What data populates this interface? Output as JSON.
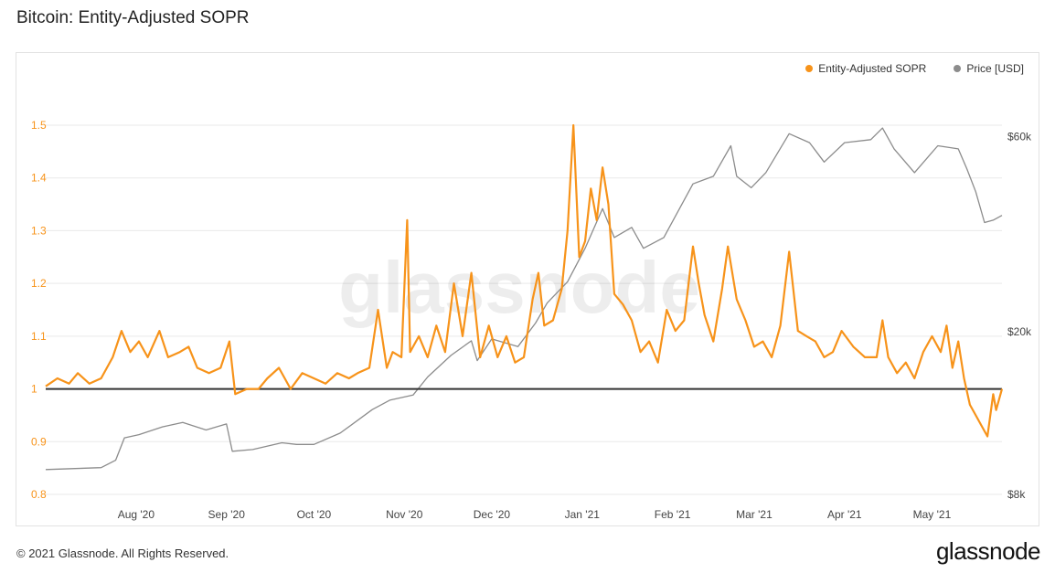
{
  "header": {
    "title": "Bitcoin: Entity-Adjusted SOPR"
  },
  "footer": {
    "copyright": "© 2021 Glassnode. All Rights Reserved.",
    "logo": "glassnode"
  },
  "watermark": "glassnode",
  "colors": {
    "sopr": "#f7931a",
    "price": "#8c8c8c",
    "baseline": "#333333",
    "grid": "#e9e9e9",
    "left_axis_text": "#f7931a",
    "right_axis_text": "#444444"
  },
  "chart_data": {
    "type": "line",
    "title": "Bitcoin: Entity-Adjusted SOPR",
    "legend": {
      "placement": "top-right",
      "entries": [
        "Entity-Adjusted SOPR",
        "Price [USD]"
      ]
    },
    "x_range": [
      "2020-07-01",
      "2021-05-25"
    ],
    "x_ticks": [
      {
        "label": "Aug '20",
        "date": "2020-08-01"
      },
      {
        "label": "Sep '20",
        "date": "2020-09-01"
      },
      {
        "label": "Oct '20",
        "date": "2020-10-01"
      },
      {
        "label": "Nov '20",
        "date": "2020-11-01"
      },
      {
        "label": "Dec '20",
        "date": "2020-12-01"
      },
      {
        "label": "Jan '21",
        "date": "2021-01-01"
      },
      {
        "label": "Feb '21",
        "date": "2021-02-01"
      },
      {
        "label": "Mar '21",
        "date": "2021-03-01"
      },
      {
        "label": "Apr '21",
        "date": "2021-04-01"
      },
      {
        "label": "May '21",
        "date": "2021-05-01"
      }
    ],
    "left_axis": {
      "ylim": [
        0.8,
        1.5
      ],
      "ticks": [
        "0.8",
        "0.9",
        "1",
        "1.1",
        "1.2",
        "1.3",
        "1.4",
        "1.5"
      ],
      "tick_values": [
        0.8,
        0.9,
        1.0,
        1.1,
        1.2,
        1.3,
        1.4,
        1.5
      ]
    },
    "right_axis": {
      "scale": "log",
      "ylim": [
        8000,
        64000
      ],
      "ticks": [
        {
          "label": "$8k",
          "value": 8000
        },
        {
          "label": "$20k",
          "value": 20000
        },
        {
          "label": "$60k",
          "value": 60000
        }
      ]
    },
    "reference_line": {
      "axis": "left",
      "value": 1.0
    },
    "grid": true,
    "series": [
      {
        "name": "Entity-Adjusted SOPR",
        "axis": "left",
        "points": [
          [
            "2020-07-01",
            1.005
          ],
          [
            "2020-07-05",
            1.02
          ],
          [
            "2020-07-09",
            1.01
          ],
          [
            "2020-07-12",
            1.03
          ],
          [
            "2020-07-16",
            1.01
          ],
          [
            "2020-07-20",
            1.02
          ],
          [
            "2020-07-24",
            1.06
          ],
          [
            "2020-07-27",
            1.11
          ],
          [
            "2020-07-30",
            1.07
          ],
          [
            "2020-08-02",
            1.09
          ],
          [
            "2020-08-05",
            1.06
          ],
          [
            "2020-08-09",
            1.11
          ],
          [
            "2020-08-12",
            1.06
          ],
          [
            "2020-08-16",
            1.07
          ],
          [
            "2020-08-19",
            1.08
          ],
          [
            "2020-08-22",
            1.04
          ],
          [
            "2020-08-26",
            1.03
          ],
          [
            "2020-08-30",
            1.04
          ],
          [
            "2020-09-02",
            1.09
          ],
          [
            "2020-09-04",
            0.99
          ],
          [
            "2020-09-08",
            1.0
          ],
          [
            "2020-09-12",
            1.0
          ],
          [
            "2020-09-15",
            1.02
          ],
          [
            "2020-09-19",
            1.04
          ],
          [
            "2020-09-23",
            1.0
          ],
          [
            "2020-09-27",
            1.03
          ],
          [
            "2020-10-01",
            1.02
          ],
          [
            "2020-10-05",
            1.01
          ],
          [
            "2020-10-09",
            1.03
          ],
          [
            "2020-10-13",
            1.02
          ],
          [
            "2020-10-16",
            1.03
          ],
          [
            "2020-10-20",
            1.04
          ],
          [
            "2020-10-23",
            1.15
          ],
          [
            "2020-10-26",
            1.04
          ],
          [
            "2020-10-28",
            1.07
          ],
          [
            "2020-10-31",
            1.06
          ],
          [
            "2020-11-02",
            1.32
          ],
          [
            "2020-11-03",
            1.07
          ],
          [
            "2020-11-06",
            1.1
          ],
          [
            "2020-11-09",
            1.06
          ],
          [
            "2020-11-12",
            1.12
          ],
          [
            "2020-11-15",
            1.07
          ],
          [
            "2020-11-18",
            1.2
          ],
          [
            "2020-11-21",
            1.1
          ],
          [
            "2020-11-24",
            1.22
          ],
          [
            "2020-11-27",
            1.06
          ],
          [
            "2020-11-30",
            1.12
          ],
          [
            "2020-12-03",
            1.06
          ],
          [
            "2020-12-06",
            1.1
          ],
          [
            "2020-12-09",
            1.05
          ],
          [
            "2020-12-12",
            1.06
          ],
          [
            "2020-12-15",
            1.17
          ],
          [
            "2020-12-17",
            1.22
          ],
          [
            "2020-12-19",
            1.12
          ],
          [
            "2020-12-22",
            1.13
          ],
          [
            "2020-12-25",
            1.19
          ],
          [
            "2020-12-27",
            1.3
          ],
          [
            "2020-12-29",
            1.5
          ],
          [
            "2020-12-31",
            1.25
          ],
          [
            "2021-01-02",
            1.28
          ],
          [
            "2021-01-04",
            1.38
          ],
          [
            "2021-01-06",
            1.32
          ],
          [
            "2021-01-08",
            1.42
          ],
          [
            "2021-01-10",
            1.35
          ],
          [
            "2021-01-12",
            1.18
          ],
          [
            "2021-01-15",
            1.16
          ],
          [
            "2021-01-18",
            1.13
          ],
          [
            "2021-01-21",
            1.07
          ],
          [
            "2021-01-24",
            1.09
          ],
          [
            "2021-01-27",
            1.05
          ],
          [
            "2021-01-30",
            1.15
          ],
          [
            "2021-02-02",
            1.11
          ],
          [
            "2021-02-05",
            1.13
          ],
          [
            "2021-02-08",
            1.27
          ],
          [
            "2021-02-10",
            1.2
          ],
          [
            "2021-02-12",
            1.14
          ],
          [
            "2021-02-15",
            1.09
          ],
          [
            "2021-02-18",
            1.19
          ],
          [
            "2021-02-20",
            1.27
          ],
          [
            "2021-02-23",
            1.17
          ],
          [
            "2021-02-26",
            1.13
          ],
          [
            "2021-03-01",
            1.08
          ],
          [
            "2021-03-04",
            1.09
          ],
          [
            "2021-03-07",
            1.06
          ],
          [
            "2021-03-10",
            1.12
          ],
          [
            "2021-03-13",
            1.26
          ],
          [
            "2021-03-16",
            1.11
          ],
          [
            "2021-03-19",
            1.1
          ],
          [
            "2021-03-22",
            1.09
          ],
          [
            "2021-03-25",
            1.06
          ],
          [
            "2021-03-28",
            1.07
          ],
          [
            "2021-03-31",
            1.11
          ],
          [
            "2021-04-04",
            1.08
          ],
          [
            "2021-04-08",
            1.06
          ],
          [
            "2021-04-12",
            1.06
          ],
          [
            "2021-04-14",
            1.13
          ],
          [
            "2021-04-16",
            1.06
          ],
          [
            "2021-04-19",
            1.03
          ],
          [
            "2021-04-22",
            1.05
          ],
          [
            "2021-04-25",
            1.02
          ],
          [
            "2021-04-28",
            1.07
          ],
          [
            "2021-05-01",
            1.1
          ],
          [
            "2021-05-04",
            1.07
          ],
          [
            "2021-05-06",
            1.12
          ],
          [
            "2021-05-08",
            1.04
          ],
          [
            "2021-05-10",
            1.09
          ],
          [
            "2021-05-12",
            1.02
          ],
          [
            "2021-05-14",
            0.97
          ],
          [
            "2021-05-16",
            0.95
          ],
          [
            "2021-05-18",
            0.93
          ],
          [
            "2021-05-20",
            0.91
          ],
          [
            "2021-05-22",
            0.99
          ],
          [
            "2021-05-23",
            0.96
          ],
          [
            "2021-05-25",
            1.0
          ]
        ]
      },
      {
        "name": "Price [USD]",
        "axis": "right",
        "points": [
          [
            "2020-07-01",
            9200
          ],
          [
            "2020-07-10",
            9250
          ],
          [
            "2020-07-20",
            9300
          ],
          [
            "2020-07-25",
            9700
          ],
          [
            "2020-07-28",
            11000
          ],
          [
            "2020-08-02",
            11200
          ],
          [
            "2020-08-10",
            11700
          ],
          [
            "2020-08-17",
            12000
          ],
          [
            "2020-08-25",
            11500
          ],
          [
            "2020-09-01",
            11900
          ],
          [
            "2020-09-03",
            10200
          ],
          [
            "2020-09-10",
            10300
          ],
          [
            "2020-09-20",
            10700
          ],
          [
            "2020-09-25",
            10600
          ],
          [
            "2020-10-01",
            10600
          ],
          [
            "2020-10-10",
            11300
          ],
          [
            "2020-10-21",
            12900
          ],
          [
            "2020-10-27",
            13600
          ],
          [
            "2020-11-04",
            14000
          ],
          [
            "2020-11-09",
            15500
          ],
          [
            "2020-11-17",
            17500
          ],
          [
            "2020-11-24",
            19000
          ],
          [
            "2020-11-26",
            17000
          ],
          [
            "2020-12-01",
            19200
          ],
          [
            "2020-12-10",
            18400
          ],
          [
            "2020-12-16",
            21000
          ],
          [
            "2020-12-20",
            23500
          ],
          [
            "2020-12-27",
            26500
          ],
          [
            "2021-01-02",
            32000
          ],
          [
            "2021-01-08",
            40000
          ],
          [
            "2021-01-12",
            34000
          ],
          [
            "2021-01-18",
            36000
          ],
          [
            "2021-01-22",
            32000
          ],
          [
            "2021-01-29",
            34000
          ],
          [
            "2021-02-08",
            46000
          ],
          [
            "2021-02-15",
            48000
          ],
          [
            "2021-02-21",
            57000
          ],
          [
            "2021-02-23",
            48000
          ],
          [
            "2021-02-28",
            45000
          ],
          [
            "2021-03-05",
            49000
          ],
          [
            "2021-03-13",
            61000
          ],
          [
            "2021-03-20",
            58000
          ],
          [
            "2021-03-25",
            52000
          ],
          [
            "2021-04-01",
            58000
          ],
          [
            "2021-04-10",
            59000
          ],
          [
            "2021-04-14",
            63000
          ],
          [
            "2021-04-18",
            56000
          ],
          [
            "2021-04-25",
            49000
          ],
          [
            "2021-05-03",
            57000
          ],
          [
            "2021-05-10",
            56000
          ],
          [
            "2021-05-13",
            50000
          ],
          [
            "2021-05-16",
            44000
          ],
          [
            "2021-05-19",
            37000
          ],
          [
            "2021-05-22",
            37500
          ],
          [
            "2021-05-25",
            38500
          ]
        ]
      }
    ]
  }
}
